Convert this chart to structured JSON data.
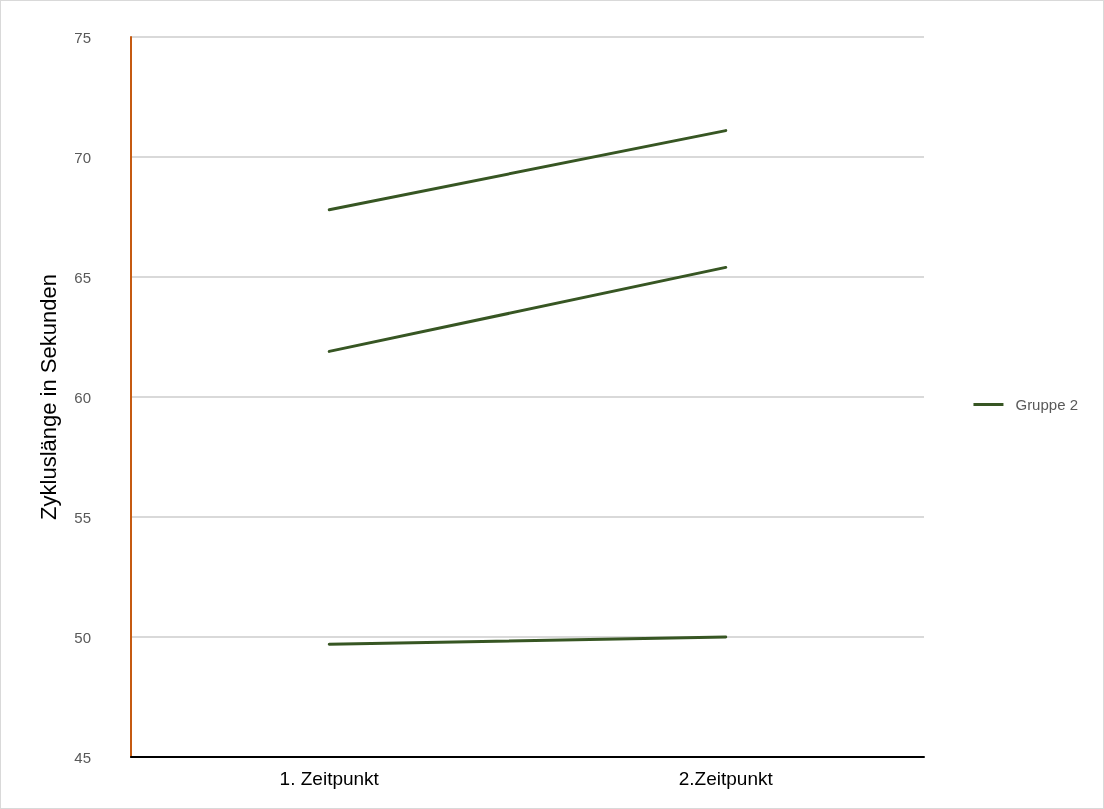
{
  "chart_data": {
    "type": "line",
    "ylabel": "Zykluslänge in Sekunden",
    "categories": [
      "1. Zeitpunkt",
      "2.Zeitpunkt"
    ],
    "series": [
      {
        "name": "Gruppe 2",
        "color": "#375623",
        "values": [
          67.8,
          71.1
        ]
      },
      {
        "color": "#375623",
        "values": [
          61.9,
          65.4
        ]
      },
      {
        "color": "#375623",
        "values": [
          49.7,
          50.0
        ]
      }
    ],
    "ylim": [
      45,
      75
    ],
    "yticks": [
      45,
      50,
      55,
      60,
      65,
      70,
      75
    ],
    "grid": "y",
    "legend": "right",
    "marker": "none",
    "line_style": "solid"
  }
}
